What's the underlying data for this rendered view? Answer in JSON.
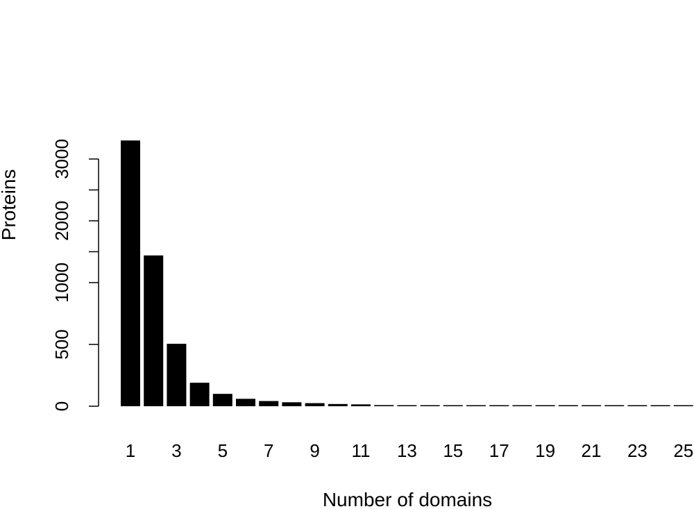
{
  "chart_data": {
    "type": "bar",
    "title": "",
    "xlabel": "Number of domains",
    "ylabel": "Proteins",
    "categories": [
      1,
      2,
      3,
      4,
      5,
      6,
      7,
      8,
      9,
      10,
      11,
      12,
      13,
      14,
      15,
      16,
      17,
      18,
      19,
      20,
      21,
      22,
      23,
      24,
      25
    ],
    "x_tick_labels": [
      "1",
      "3",
      "5",
      "7",
      "9",
      "11",
      "13",
      "15",
      "17",
      "19",
      "21",
      "23",
      "25"
    ],
    "values": [
      3300,
      1440,
      505,
      190,
      100,
      60,
      42,
      32,
      25,
      18,
      15,
      9,
      7,
      6,
      5,
      5,
      3,
      5,
      3,
      3,
      2,
      2,
      1,
      1,
      1
    ],
    "y_tick_labels": [
      "0",
      "500",
      "1000",
      "2000",
      "3000"
    ],
    "ylim": [
      0,
      3300
    ],
    "y_scale": "piecewise: 0-1000 linear, 1000-3000 compressed (500 per 0.5 of lower interval)",
    "grid": false,
    "legend": "none",
    "bar_color": "#000000"
  }
}
